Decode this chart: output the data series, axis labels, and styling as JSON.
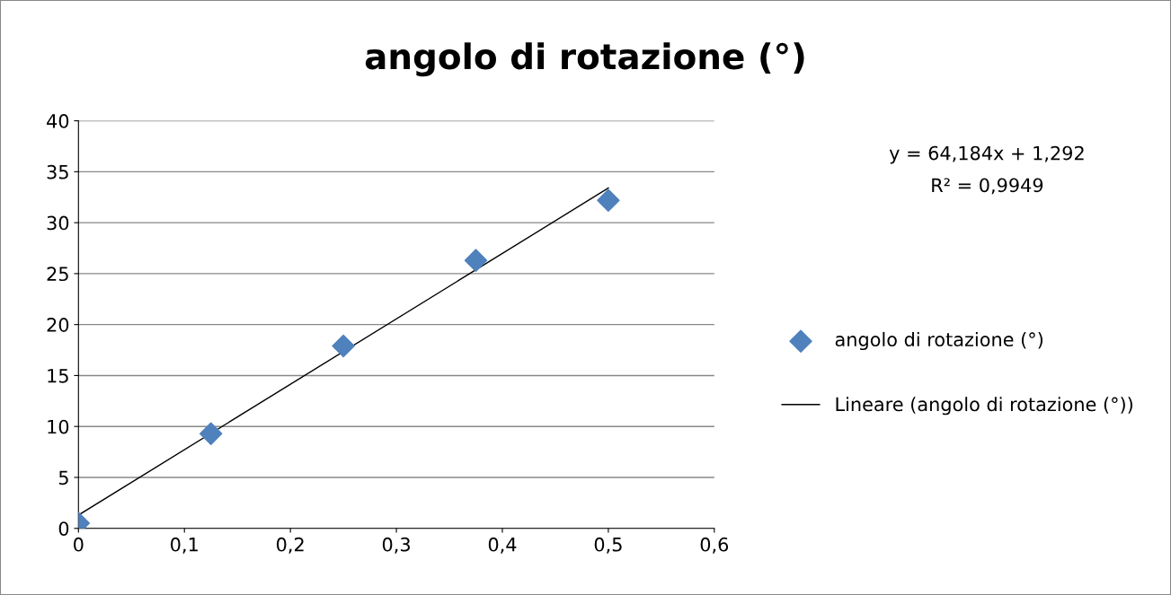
{
  "chart_data": {
    "type": "scatter",
    "title": "angolo di rotazione (°)",
    "x": [
      0,
      0.125,
      0.25,
      0.375,
      0.5
    ],
    "series": [
      {
        "name": "angolo di rotazione (°)",
        "color": "#4f81bd",
        "marker": "diamond",
        "values": [
          0.5,
          9.3,
          17.9,
          26.3,
          32.2
        ]
      },
      {
        "name": "Lineare (angolo di rotazione (°))",
        "type": "line",
        "color": "#000000",
        "marker": "none",
        "line_style": "solid",
        "x": [
          0,
          0.5
        ],
        "values": [
          1.3,
          33.4
        ]
      }
    ],
    "xlim": [
      0,
      0.6
    ],
    "ylim": [
      0,
      40
    ],
    "xticks": [
      0,
      {
        "value": 0.1,
        "label": "0,1"
      },
      {
        "value": 0.2,
        "label": "0,2"
      },
      {
        "value": 0.3,
        "label": "0,3"
      },
      {
        "value": 0.4,
        "label": "0,4"
      },
      {
        "value": 0.5,
        "label": "0,5"
      },
      {
        "value": 0.6,
        "label": "0,6"
      }
    ],
    "yticks": [
      0,
      5,
      10,
      15,
      20,
      25,
      30,
      35,
      40
    ],
    "grid": "y",
    "legend": "right",
    "annotations": [
      "y = 64,184x + 1,292",
      "R² = 0,9949"
    ]
  }
}
